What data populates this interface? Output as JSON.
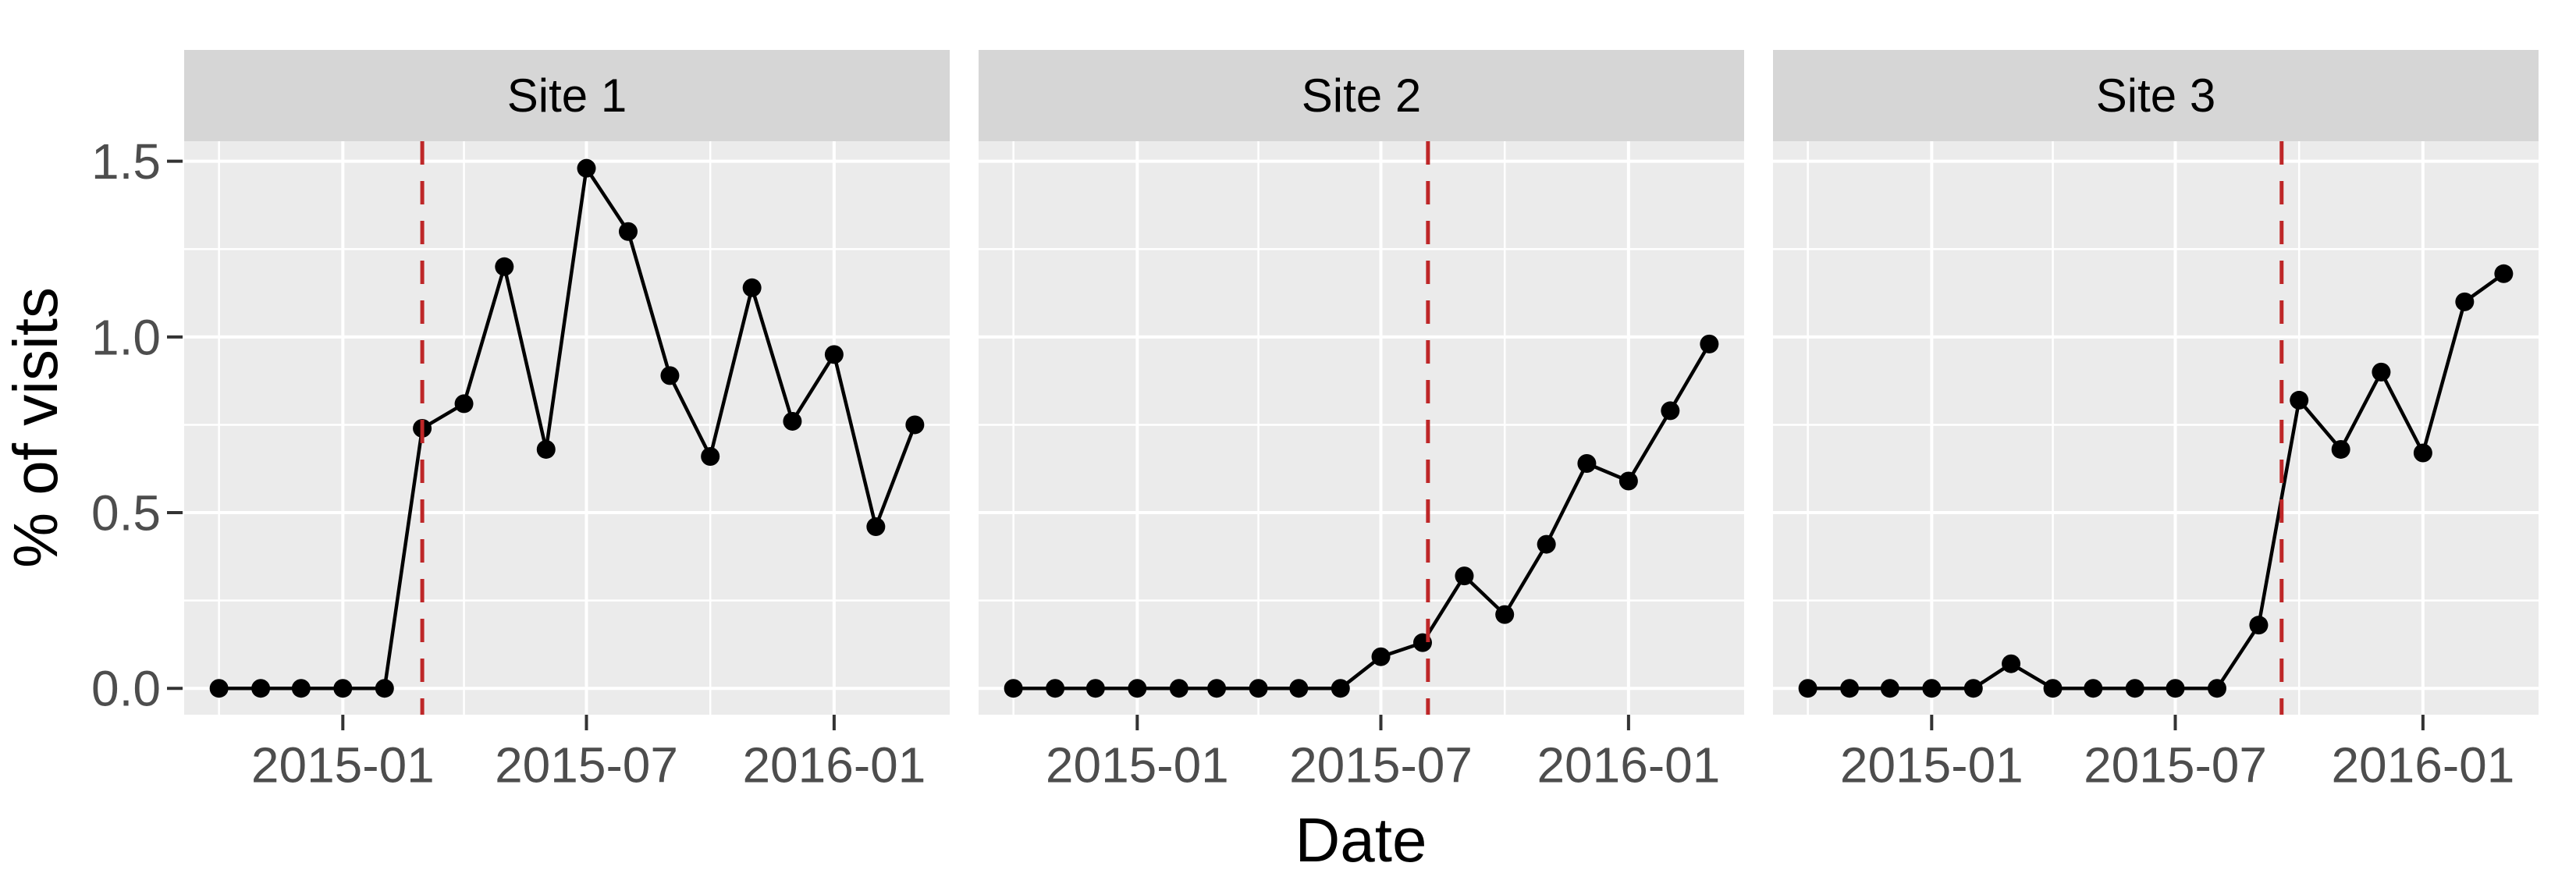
{
  "figure": {
    "xlabel": "Date",
    "ylabel": "% of visits"
  },
  "chart_data": {
    "type": "line",
    "title": "",
    "xlabel": "Date",
    "ylabel": "% of visits",
    "legend": "none",
    "grid": "on",
    "x": [
      "2014-10",
      "2014-11",
      "2014-12",
      "2015-01",
      "2015-02",
      "2015-03",
      "2015-04",
      "2015-05",
      "2015-06",
      "2015-07",
      "2015-08",
      "2015-09",
      "2015-10",
      "2015-11",
      "2015-12",
      "2016-01",
      "2016-02",
      "2016-03"
    ],
    "facets": [
      {
        "label": "Site 1",
        "values": [
          0,
          0,
          0,
          0,
          0,
          0.74,
          0.81,
          1.2,
          0.68,
          1.48,
          1.3,
          0.89,
          0.66,
          1.14,
          0.76,
          0.95,
          0.46,
          0.75
        ],
        "vline_date": "2015-03-01"
      },
      {
        "label": "Site 2",
        "values": [
          0,
          0,
          0,
          0,
          0,
          0,
          0,
          0,
          0,
          0.09,
          0.13,
          0.32,
          0.21,
          0.41,
          0.64,
          0.59,
          0.79,
          0.98
        ],
        "vline_date": "2015-08-05"
      },
      {
        "label": "Site 3",
        "values": [
          0,
          0,
          0,
          0,
          0,
          0.07,
          0,
          0,
          0,
          0,
          0,
          0.18,
          0.82,
          0.68,
          0.9,
          0.67,
          1.1,
          1.18
        ],
        "vline_date": "2015-09-18"
      }
    ],
    "x_major_ticks": [
      {
        "date": "2015-01-01",
        "label": "2015-01"
      },
      {
        "date": "2015-07-01",
        "label": "2015-07"
      },
      {
        "date": "2016-01-01",
        "label": "2016-01"
      }
    ],
    "x_minor_dates": [
      "2014-10-01",
      "2015-04-01",
      "2015-10-01"
    ],
    "y_ticks": [
      0.0,
      0.5,
      1.0,
      1.5
    ],
    "y_tick_labels": [
      "0.0",
      "0.5",
      "1.0",
      "1.5"
    ],
    "y_minor": [
      0.25,
      0.75,
      1.25
    ],
    "ylim": [
      -0.075,
      1.557
    ],
    "colors": {
      "line": "#000000",
      "point": "#000000",
      "vline": "#BE2728",
      "panel_bg": "#EBEBEB",
      "strip_bg": "#D6D6D6",
      "grid": "#FFFFFF",
      "axis_text": "#4D4D4D",
      "tick_mark": "#333333",
      "title_text": "#000000"
    }
  }
}
